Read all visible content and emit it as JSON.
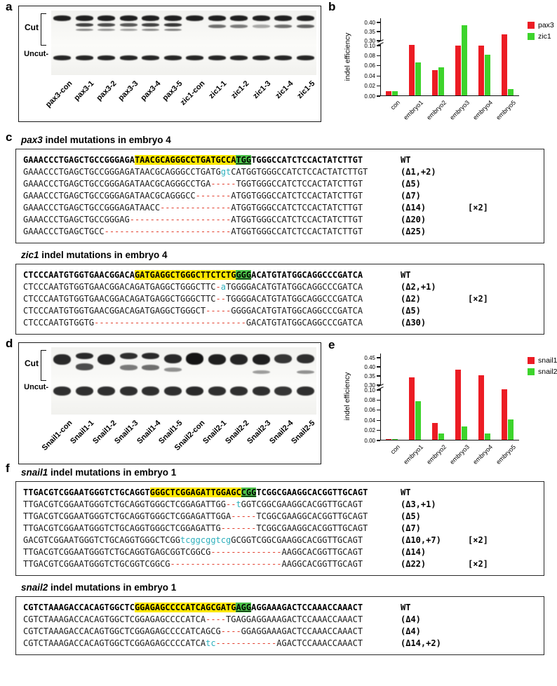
{
  "colors": {
    "bar_red": "#EC1C24",
    "bar_green": "#3DD42C",
    "highlight_yellow": "#FFE800",
    "highlight_pam": "#4CC24A",
    "deletion_dash": "#E3402E",
    "insertion": "#2FB0BD"
  },
  "panels": {
    "a": {
      "letter": "a",
      "cut_label": "Cut",
      "uncut_label": "Uncut-",
      "lanes": [
        {
          "label": "pax3-con",
          "bands": [
            [
              8,
              8,
              0.95
            ],
            [
              70,
              7,
              0.92
            ]
          ]
        },
        {
          "label": "pax3-1",
          "bands": [
            [
              8,
              8,
              0.95
            ],
            [
              20,
              5,
              0.8
            ],
            [
              28,
              4,
              0.5
            ],
            [
              70,
              7,
              0.92
            ]
          ]
        },
        {
          "label": "pax3-2",
          "bands": [
            [
              8,
              8,
              0.95
            ],
            [
              20,
              5,
              0.75
            ],
            [
              28,
              4,
              0.45
            ],
            [
              70,
              7,
              0.92
            ]
          ]
        },
        {
          "label": "pax3-3",
          "bands": [
            [
              8,
              8,
              0.95
            ],
            [
              20,
              5,
              0.7
            ],
            [
              28,
              4,
              0.4
            ],
            [
              70,
              7,
              0.92
            ]
          ]
        },
        {
          "label": "pax3-4",
          "bands": [
            [
              8,
              8,
              0.95
            ],
            [
              20,
              5,
              0.8
            ],
            [
              28,
              4,
              0.5
            ],
            [
              70,
              7,
              0.92
            ]
          ]
        },
        {
          "label": "pax3-5",
          "bands": [
            [
              8,
              8,
              0.95
            ],
            [
              20,
              5,
              0.85
            ],
            [
              28,
              4,
              0.55
            ],
            [
              70,
              7,
              0.92
            ]
          ]
        },
        {
          "label": "zic1-con",
          "bands": [
            [
              8,
              8,
              0.95
            ],
            [
              70,
              7,
              0.92
            ]
          ]
        },
        {
          "label": "zic1-1",
          "bands": [
            [
              8,
              8,
              0.95
            ],
            [
              22,
              5,
              0.6
            ],
            [
              70,
              7,
              0.92
            ]
          ]
        },
        {
          "label": "zic1-2",
          "bands": [
            [
              8,
              8,
              0.95
            ],
            [
              22,
              5,
              0.55
            ],
            [
              70,
              7,
              0.92
            ]
          ]
        },
        {
          "label": "zic1-3",
          "bands": [
            [
              8,
              8,
              0.95
            ],
            [
              22,
              5,
              0.35
            ],
            [
              70,
              7,
              0.92
            ]
          ]
        },
        {
          "label": "zic1-4",
          "bands": [
            [
              8,
              8,
              0.95
            ],
            [
              22,
              5,
              0.6
            ],
            [
              70,
              7,
              0.92
            ]
          ]
        },
        {
          "label": "zic1-5",
          "bands": [
            [
              8,
              8,
              0.95
            ],
            [
              22,
              5,
              0.65
            ],
            [
              70,
              7,
              0.92
            ]
          ]
        }
      ]
    },
    "b": {
      "letter": "b"
    },
    "c": {
      "letter": "c"
    },
    "d": {
      "letter": "d",
      "cut_label": "Cut",
      "uncut_label": "Uncut-",
      "lanes": [
        {
          "label": "Snail1-con",
          "bands": [
            [
              10,
              16,
              0.9
            ],
            [
              58,
              14,
              0.88
            ]
          ]
        },
        {
          "label": "Snail1-1",
          "bands": [
            [
              8,
              10,
              0.9
            ],
            [
              24,
              10,
              0.75
            ],
            [
              58,
              14,
              0.88
            ]
          ]
        },
        {
          "label": "Snail1-2",
          "bands": [
            [
              10,
              16,
              0.92
            ],
            [
              58,
              14,
              0.88
            ]
          ]
        },
        {
          "label": "Snail1-3",
          "bands": [
            [
              8,
              10,
              0.88
            ],
            [
              26,
              8,
              0.55
            ],
            [
              58,
              14,
              0.88
            ]
          ]
        },
        {
          "label": "Snail1-4",
          "bands": [
            [
              8,
              10,
              0.9
            ],
            [
              26,
              8,
              0.6
            ],
            [
              58,
              14,
              0.88
            ]
          ]
        },
        {
          "label": "Snail1-5",
          "bands": [
            [
              10,
              14,
              0.9
            ],
            [
              30,
              6,
              0.45
            ],
            [
              58,
              14,
              0.88
            ]
          ]
        },
        {
          "label": "Snail2-con",
          "bands": [
            [
              8,
              18,
              1.0
            ],
            [
              58,
              14,
              0.9
            ]
          ]
        },
        {
          "label": "Snail2-1",
          "bands": [
            [
              10,
              16,
              0.95
            ],
            [
              58,
              14,
              0.88
            ]
          ]
        },
        {
          "label": "Snail2-2",
          "bands": [
            [
              10,
              16,
              0.92
            ],
            [
              58,
              14,
              0.88
            ]
          ]
        },
        {
          "label": "Snail2-3",
          "bands": [
            [
              10,
              16,
              0.95
            ],
            [
              34,
              6,
              0.4
            ],
            [
              58,
              14,
              0.88
            ]
          ]
        },
        {
          "label": "Snail2-4",
          "bands": [
            [
              10,
              14,
              0.85
            ],
            [
              58,
              14,
              0.85
            ]
          ]
        },
        {
          "label": "Snail2-5",
          "bands": [
            [
              10,
              14,
              0.88
            ],
            [
              34,
              6,
              0.45
            ],
            [
              58,
              14,
              0.88
            ]
          ]
        }
      ]
    },
    "e": {
      "letter": "e"
    },
    "f": {
      "letter": "f"
    }
  },
  "chart_data": [
    {
      "type": "bar",
      "panel": "b",
      "title": "",
      "ylabel": "indel efficiency",
      "categories": [
        "con",
        "embryo1",
        "embryo2",
        "embryo3",
        "embryo4",
        "embryo5"
      ],
      "series": [
        {
          "name": "pax3",
          "color": "#EC1C24",
          "values": [
            0.008,
            0.1,
            0.05,
            0.099,
            0.099,
            0.33
          ]
        },
        {
          "name": "zic1",
          "color": "#3DD42C",
          "values": [
            0.008,
            0.065,
            0.056,
            0.38,
            0.08,
            0.012
          ]
        }
      ],
      "yticks_lower": [
        0,
        0.02,
        0.04,
        0.06,
        0.08,
        0.1
      ],
      "yticks_upper": [
        0.3,
        0.35,
        0.4
      ],
      "axis_break": true,
      "legend_position": "right",
      "grid": false
    },
    {
      "type": "bar",
      "panel": "e",
      "title": "",
      "ylabel": "indel efficiency",
      "categories": [
        "con",
        "embryo1",
        "embryo2",
        "embryo3",
        "embryo4",
        "embryo5"
      ],
      "series": [
        {
          "name": "snail1",
          "color": "#EC1C24",
          "values": [
            0.002,
            0.34,
            0.034,
            0.38,
            0.35,
            0.1
          ]
        },
        {
          "name": "snail2",
          "color": "#3DD42C",
          "values": [
            0.002,
            0.076,
            0.012,
            0.026,
            0.012,
            0.04
          ]
        }
      ],
      "yticks_lower": [
        0,
        0.02,
        0.04,
        0.06,
        0.08,
        0.1
      ],
      "yticks_upper": [
        0.3,
        0.35,
        0.4,
        0.45
      ],
      "axis_break": true,
      "legend_position": "right",
      "grid": false
    }
  ],
  "mutation_blocks": [
    {
      "gene": "pax3",
      "title_rest": " indel mutations in embryo 4",
      "wt": {
        "pre": "GAAACCCTGAGCTGCCGGGAGA",
        "target": "TAACGCAGGGCCTGATGCCA",
        "pam": "TGG",
        "post": "TGGGCCATCTCCACTATCTTGT",
        "label": "WT"
      },
      "rows": [
        {
          "parts": [
            [
              "s",
              "GAAACCCTGAGCTGCCGGGAGATAACGCAGGGCCTGATG"
            ],
            [
              "i",
              "gt"
            ],
            [
              "s",
              "CATGGTGGGCCATCTCCACTATCTTGT"
            ]
          ],
          "label": "(Δ1,+2)",
          "tag": ""
        },
        {
          "parts": [
            [
              "s",
              "GAAACCCTGAGCTGCCGGGAGATAACGCAGGGCCTGA"
            ],
            [
              "d",
              "-----"
            ],
            [
              "s",
              "TGGTGGGCCATCTCCACTATCTTGT"
            ]
          ],
          "label": "(Δ5)",
          "tag": ""
        },
        {
          "parts": [
            [
              "s",
              "GAAACCCTGAGCTGCCGGGAGATAACGCAGGGCC"
            ],
            [
              "d",
              "-------"
            ],
            [
              "s",
              "ATGGTGGGCCATCTCCACTATCTTGT"
            ]
          ],
          "label": "(Δ7)",
          "tag": ""
        },
        {
          "parts": [
            [
              "s",
              "GAAACCCTGAGCTGCCGGGAGATAACC"
            ],
            [
              "d",
              "--------------"
            ],
            [
              "s",
              "ATGGTGGGCCATCTCCACTATCTTGT"
            ]
          ],
          "label": "(Δ14)",
          "tag": "[×2]"
        },
        {
          "parts": [
            [
              "s",
              "GAAACCCTGAGCTGCCGGGAG"
            ],
            [
              "d",
              "--------------------"
            ],
            [
              "s",
              "ATGGTGGGCCATCTCCACTATCTTGT"
            ]
          ],
          "label": "(Δ20)",
          "tag": ""
        },
        {
          "parts": [
            [
              "s",
              "GAAACCCTGAGCTGCC"
            ],
            [
              "d",
              "-------------------------"
            ],
            [
              "s",
              "ATGGTGGGCCATCTCCACTATCTTGT"
            ]
          ],
          "label": "(Δ25)",
          "tag": ""
        }
      ]
    },
    {
      "gene": "zic1",
      "title_rest": " indel mutations in embryo 4",
      "wt": {
        "pre": "CTCCCAATGTGGTGAACGGACA",
        "target": "GATGAGGCTGGGCTTCTCTG",
        "pam": "GGG",
        "post": "ACATGTATGGCAGGCCCGATCA",
        "label": "WT"
      },
      "rows": [
        {
          "parts": [
            [
              "s",
              "CTCCCAATGTGGTGAACGGACAGATGAGGCTGGGCTTC"
            ],
            [
              "d",
              "-"
            ],
            [
              "i",
              "a"
            ],
            [
              "s",
              "TGGGGACATGTATGGCAGGCCCGATCA"
            ]
          ],
          "label": "(Δ2,+1)",
          "tag": ""
        },
        {
          "parts": [
            [
              "s",
              "CTCCCAATGTGGTGAACGGACAGATGAGGCTGGGCTTC"
            ],
            [
              "d",
              "--"
            ],
            [
              "s",
              "TGGGGACATGTATGGCAGGCCCGATCA"
            ]
          ],
          "label": "(Δ2)",
          "tag": "[×2]"
        },
        {
          "parts": [
            [
              "s",
              "CTCCCAATGTGGTGAACGGACAGATGAGGCTGGGCT"
            ],
            [
              "d",
              "-----"
            ],
            [
              "s",
              "GGGGACATGTATGGCAGGCCCGATCA"
            ]
          ],
          "label": "(Δ5)",
          "tag": ""
        },
        {
          "parts": [
            [
              "s",
              "CTCCCAATGTGGTG"
            ],
            [
              "d",
              "------------------------------"
            ],
            [
              "s",
              "GACATGTATGGCAGGCCCGATCA"
            ]
          ],
          "label": "(Δ30)",
          "tag": ""
        }
      ]
    },
    {
      "gene": "snail1",
      "title_rest": " indel mutations in embryo 1",
      "wt": {
        "pre": "TTGACGTCGGAATGGGTCTGCAGGT",
        "target": "GGGCTCGGAGATTGGAGC",
        "pam": "CGG",
        "post": "TCGGCGAAGGCACGGTTGCAGT",
        "label": "WT"
      },
      "rows": [
        {
          "parts": [
            [
              "s",
              "TTGACGTCGGAATGGGTCTGCAGGTGGGCTCGGAGATTGG"
            ],
            [
              "d",
              "--"
            ],
            [
              "i",
              "t"
            ],
            [
              "s",
              "GGTCGGCGAAGGCACGGTTGCAGT"
            ]
          ],
          "label": "(Δ3,+1)",
          "tag": ""
        },
        {
          "parts": [
            [
              "s",
              "TTGACGTCGGAATGGGTCTGCAGGTGGGCTCGGAGATTGGA"
            ],
            [
              "d",
              "-----"
            ],
            [
              "s",
              "TCGGCGAAGGCACGGTTGCAGT"
            ]
          ],
          "label": "(Δ5)",
          "tag": ""
        },
        {
          "parts": [
            [
              "s",
              "TTGACGTCGGAATGGGTCTGCAGGTGGGCTCGGAGATTG"
            ],
            [
              "d",
              "-------"
            ],
            [
              "s",
              "TCGGCGAAGGCACGGTTGCAGT"
            ]
          ],
          "label": "(Δ7)",
          "tag": ""
        },
        {
          "parts": [
            [
              "s",
              "GACGTCGGAATGGGTCTGCAGGTGGGCTCGG"
            ],
            [
              "i",
              "tcggcggtcg"
            ],
            [
              "s",
              "GCGGTCGGCGAAGGCACGGTTGCAGT"
            ]
          ],
          "label": "(Δ10,+7)",
          "tag": "[×2]"
        },
        {
          "parts": [
            [
              "s",
              "TTGACGTCGGAATGGGTCTGCAGGTGAGCGGTCGGCG"
            ],
            [
              "d",
              "--------------"
            ],
            [
              "s",
              "AAGGCACGGTTGCAGT"
            ]
          ],
          "label": "(Δ14)",
          "tag": ""
        },
        {
          "parts": [
            [
              "s",
              "TTGACGTCGGAATGGGTCTGCGGTCGGCG"
            ],
            [
              "d",
              "----------------------"
            ],
            [
              "s",
              "AAGGCACGGTTGCAGT"
            ]
          ],
          "label": "(Δ22)",
          "tag": "[×2]"
        }
      ]
    },
    {
      "gene": "snail2",
      "title_rest": " indel mutations in embryo 1",
      "wt": {
        "pre": "CGTCTAAAGACCACAGTGGCTC",
        "target": "GGAGAGCCCCATCAGCGATG",
        "pam": "AGG",
        "post": "AGGAAAGACTCCAAACCAAACT",
        "label": "WT"
      },
      "rows": [
        {
          "parts": [
            [
              "s",
              "CGTCTAAAGACCACAGTGGCTCGGAGAGCCCCATCA"
            ],
            [
              "d",
              "----"
            ],
            [
              "s",
              "TGAGGAGGAAAGACTCCAAACCAAACT"
            ]
          ],
          "label": "(Δ4)",
          "tag": ""
        },
        {
          "parts": [
            [
              "s",
              "CGTCTAAAGACCACAGTGGCTCGGAGAGCCCCATCAGCG"
            ],
            [
              "d",
              "----"
            ],
            [
              "s",
              "GGAGGAAAGACTCCAAACCAAACT"
            ]
          ],
          "label": "(Δ4)",
          "tag": ""
        },
        {
          "parts": [
            [
              "s",
              "CGTCTAAAGACCACAGTGGCTCGGAGAGCCCCATCA"
            ],
            [
              "i",
              "tc"
            ],
            [
              "d",
              "------------"
            ],
            [
              "s",
              "AGACTCCAAACCAAACT"
            ]
          ],
          "label": "(Δ14,+2)",
          "tag": ""
        }
      ]
    }
  ]
}
